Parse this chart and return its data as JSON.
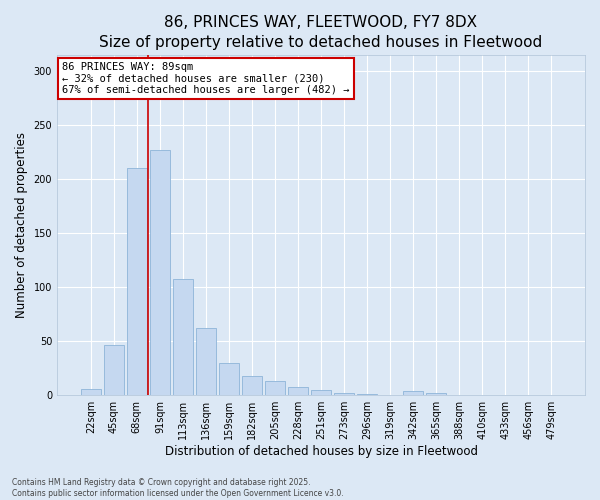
{
  "title_line1": "86, PRINCES WAY, FLEETWOOD, FY7 8DX",
  "title_line2": "Size of property relative to detached houses in Fleetwood",
  "xlabel": "Distribution of detached houses by size in Fleetwood",
  "ylabel": "Number of detached properties",
  "bar_values": [
    5,
    46,
    210,
    227,
    107,
    62,
    29,
    17,
    13,
    7,
    4,
    2,
    1,
    0,
    3,
    2,
    0,
    0,
    0,
    0,
    0
  ],
  "categories": [
    "22sqm",
    "45sqm",
    "68sqm",
    "91sqm",
    "113sqm",
    "136sqm",
    "159sqm",
    "182sqm",
    "205sqm",
    "228sqm",
    "251sqm",
    "273sqm",
    "296sqm",
    "319sqm",
    "342sqm",
    "365sqm",
    "388sqm",
    "410sqm",
    "433sqm",
    "456sqm",
    "479sqm"
  ],
  "bar_color": "#c5d8f0",
  "bar_edge_color": "#8eb4d8",
  "bar_width": 0.85,
  "vline_x": 2.5,
  "vline_color": "#cc0000",
  "annotation_text": "86 PRINCES WAY: 89sqm\n← 32% of detached houses are smaller (230)\n67% of semi-detached houses are larger (482) →",
  "annotation_box_color": "#cc0000",
  "annotation_bg_color": "#ffffff",
  "ylim": [
    0,
    315
  ],
  "yticks": [
    0,
    50,
    100,
    150,
    200,
    250,
    300
  ],
  "background_color": "#dce8f5",
  "plot_bg_color": "#dce8f5",
  "grid_color": "#ffffff",
  "footer_line1": "Contains HM Land Registry data © Crown copyright and database right 2025.",
  "footer_line2": "Contains public sector information licensed under the Open Government Licence v3.0.",
  "title_fontsize": 11,
  "subtitle_fontsize": 9,
  "tick_fontsize": 7,
  "xlabel_fontsize": 8.5,
  "ylabel_fontsize": 8.5,
  "annotation_fontsize": 7.5
}
